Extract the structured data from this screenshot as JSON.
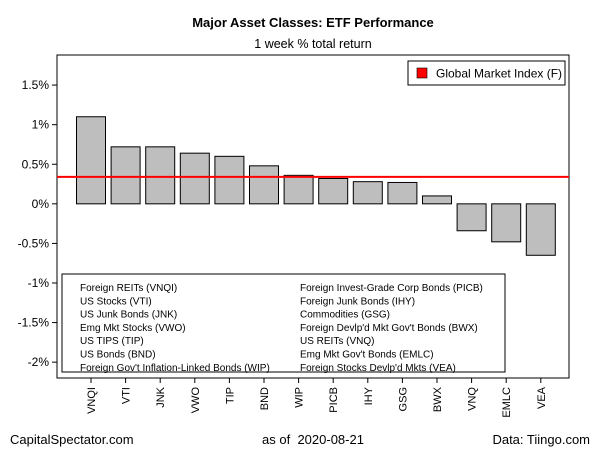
{
  "chart_data": {
    "type": "bar",
    "title": "Major Asset Classes: ETF Performance",
    "subtitle": "1 week % total return",
    "categories": [
      "VNQI",
      "VTI",
      "JNK",
      "VWO",
      "TIP",
      "BND",
      "WIP",
      "PICB",
      "IHY",
      "GSG",
      "BWX",
      "VNQ",
      "EMLC",
      "VEA"
    ],
    "values": [
      1.1,
      0.72,
      0.72,
      0.64,
      0.6,
      0.48,
      0.36,
      0.32,
      0.28,
      0.27,
      0.1,
      -0.34,
      -0.48,
      -0.65
    ],
    "ylim": [
      -2.2,
      1.88
    ],
    "yticks": [
      -2,
      -1.5,
      -1,
      -0.5,
      0,
      0.5,
      1,
      1.5
    ],
    "ytick_labels": [
      "-2%",
      "-1.5%",
      "-1%",
      "-0.5%",
      "0%",
      "0.5%",
      "1%",
      "1.5%"
    ],
    "reference_line": {
      "label": "Global Market Index (F)",
      "value": 0.34,
      "color": "#ff0000"
    },
    "bar_color": "#bebebe",
    "legend_position": "top-right",
    "notes_left": [
      "Foreign REITs (VNQI)",
      "US Stocks (VTI)",
      "US Junk Bonds (JNK)",
      "Emg Mkt Stocks (VWO)",
      "US TIPS (TIP)",
      "US Bonds (BND)",
      "Foreign Gov't Inflation-Linked Bonds (WIP)"
    ],
    "notes_right": [
      "Foreign Invest-Grade Corp Bonds (PICB)",
      "Foreign Junk Bonds (IHY)",
      "Commodities (GSG)",
      "Foreign Devlp'd Mkt Gov't Bonds (BWX)",
      "US REITs (VNQ)",
      "Emg Mkt Gov't Bonds (EMLC)",
      "Foreign Stocks Devlp'd Mkts (VEA)"
    ]
  },
  "footer": {
    "left": "CapitalSpectator.com",
    "center": "as of  2020-08-21",
    "right": "Data: Tiingo.com"
  }
}
